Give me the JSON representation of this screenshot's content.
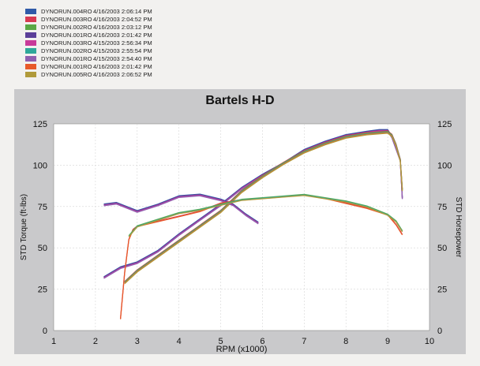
{
  "legend": [
    {
      "run": "DYNORUN.004RO",
      "date": "4/16/2003 2:06:14 PM",
      "color": "#2f5aa8"
    },
    {
      "run": "DYNORUN.003RO",
      "date": "4/16/2003 2:04:52 PM",
      "color": "#d83a52"
    },
    {
      "run": "DYNORUN.002RO",
      "date": "4/16/2003 2:03:12 PM",
      "color": "#5aa845"
    },
    {
      "run": "DYNORUN.001RO",
      "date": "4/16/2003 2:01:42 PM",
      "color": "#5b3f99"
    },
    {
      "run": "DYNORUN.003RO",
      "date": "4/15/2003 2:56:34 PM",
      "color": "#c83a9a"
    },
    {
      "run": "DYNORUN.002RO",
      "date": "4/15/2003 2:55:54 PM",
      "color": "#2fa89a"
    },
    {
      "run": "DYNORUN.001RO",
      "date": "4/15/2003 2:54:40 PM",
      "color": "#8f5fb0"
    },
    {
      "run": "DYNORUN.001RO",
      "date": "4/16/2003 2:01:42 PM",
      "color": "#e85a2a"
    },
    {
      "run": "DYNORUN.005RO",
      "date": "4/16/2003 2:06:52 PM",
      "color": "#b09a3a"
    }
  ],
  "chart_data": {
    "type": "line",
    "title": "Bartels H-D",
    "xlabel": "RPM (x1000)",
    "ylabel_left": "STD Torque (ft-lbs)",
    "ylabel_right": "STD Horsepower",
    "xlim": [
      1,
      10
    ],
    "ylim": [
      0,
      125
    ],
    "xticks": [
      1,
      2,
      3,
      4,
      5,
      6,
      7,
      8,
      9,
      10
    ],
    "yticks": [
      0,
      25,
      50,
      75,
      100,
      125
    ],
    "grid": true,
    "series_groups": {
      "horsepower_high": {
        "x": [
          2.2,
          2.6,
          3.0,
          3.5,
          4.0,
          4.5,
          5.0,
          5.5,
          6.0,
          6.5,
          7.0,
          7.5,
          8.0,
          8.5,
          8.8,
          9.0,
          9.1,
          9.2,
          9.3,
          9.35
        ],
        "y": [
          32,
          38,
          41,
          48,
          58,
          67,
          76,
          86,
          94,
          101,
          109,
          114,
          118,
          120,
          121,
          121,
          117,
          110,
          103,
          80
        ]
      },
      "horsepower_low": {
        "x": [
          2.7,
          3.0,
          3.5,
          4.0,
          4.5,
          5.0,
          5.5,
          6.0,
          6.5,
          7.0,
          7.5,
          8.0,
          8.5,
          9.0,
          9.1,
          9.2,
          9.3,
          9.35
        ],
        "y": [
          29,
          36,
          45,
          54,
          63,
          72,
          84,
          93,
          101,
          108,
          113,
          117,
          119,
          120,
          118,
          112,
          103,
          85
        ]
      },
      "torque_early": {
        "x": [
          2.2,
          2.5,
          3.0,
          3.5,
          4.0,
          4.5,
          5.0,
          5.3,
          5.6,
          5.9
        ],
        "y": [
          76,
          77,
          72,
          76,
          81,
          82,
          79,
          76,
          70,
          65
        ]
      },
      "torque_main": {
        "x": [
          2.6,
          2.7,
          2.8,
          2.9,
          3.0,
          3.5,
          4.0,
          4.5,
          5.0,
          5.5,
          6.0,
          6.5,
          7.0,
          7.5,
          8.0,
          8.5,
          9.0,
          9.2,
          9.35
        ],
        "y": [
          7,
          35,
          55,
          61,
          63,
          66,
          69,
          72,
          77,
          79,
          80,
          81,
          82,
          80,
          77,
          74,
          70,
          64,
          58
        ]
      },
      "torque_upper": {
        "x": [
          2.8,
          3.0,
          3.5,
          4.0,
          4.5,
          5.0,
          5.5,
          6.0,
          6.5,
          7.0,
          7.5,
          8.0,
          8.5,
          9.0,
          9.2,
          9.35
        ],
        "y": [
          57,
          63,
          67,
          71,
          73,
          76,
          79,
          80,
          81,
          82,
          80,
          78,
          75,
          70,
          66,
          60
        ]
      }
    }
  }
}
